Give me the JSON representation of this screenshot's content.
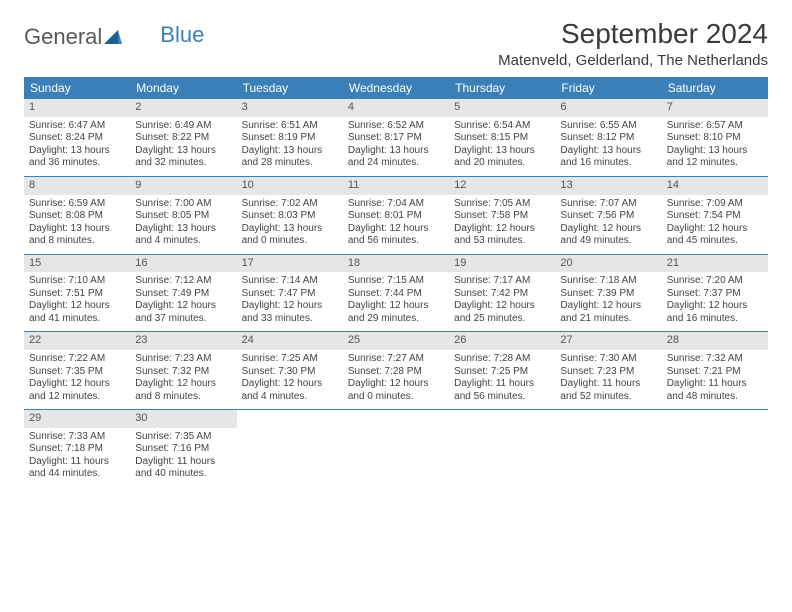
{
  "logo": {
    "text1": "General",
    "text2": "Blue"
  },
  "title": "September 2024",
  "location": "Matenveld, Gelderland, The Netherlands",
  "colors": {
    "header_bg": "#3b7fb8",
    "header_text": "#ffffff",
    "daynum_bg": "#e6e6e6",
    "week_border": "#3b7fb8",
    "body_text": "#444444"
  },
  "weekdays": [
    "Sunday",
    "Monday",
    "Tuesday",
    "Wednesday",
    "Thursday",
    "Friday",
    "Saturday"
  ],
  "weeks": [
    [
      {
        "n": "1",
        "sr": "Sunrise: 6:47 AM",
        "ss": "Sunset: 8:24 PM",
        "dl": "Daylight: 13 hours and 36 minutes."
      },
      {
        "n": "2",
        "sr": "Sunrise: 6:49 AM",
        "ss": "Sunset: 8:22 PM",
        "dl": "Daylight: 13 hours and 32 minutes."
      },
      {
        "n": "3",
        "sr": "Sunrise: 6:51 AM",
        "ss": "Sunset: 8:19 PM",
        "dl": "Daylight: 13 hours and 28 minutes."
      },
      {
        "n": "4",
        "sr": "Sunrise: 6:52 AM",
        "ss": "Sunset: 8:17 PM",
        "dl": "Daylight: 13 hours and 24 minutes."
      },
      {
        "n": "5",
        "sr": "Sunrise: 6:54 AM",
        "ss": "Sunset: 8:15 PM",
        "dl": "Daylight: 13 hours and 20 minutes."
      },
      {
        "n": "6",
        "sr": "Sunrise: 6:55 AM",
        "ss": "Sunset: 8:12 PM",
        "dl": "Daylight: 13 hours and 16 minutes."
      },
      {
        "n": "7",
        "sr": "Sunrise: 6:57 AM",
        "ss": "Sunset: 8:10 PM",
        "dl": "Daylight: 13 hours and 12 minutes."
      }
    ],
    [
      {
        "n": "8",
        "sr": "Sunrise: 6:59 AM",
        "ss": "Sunset: 8:08 PM",
        "dl": "Daylight: 13 hours and 8 minutes."
      },
      {
        "n": "9",
        "sr": "Sunrise: 7:00 AM",
        "ss": "Sunset: 8:05 PM",
        "dl": "Daylight: 13 hours and 4 minutes."
      },
      {
        "n": "10",
        "sr": "Sunrise: 7:02 AM",
        "ss": "Sunset: 8:03 PM",
        "dl": "Daylight: 13 hours and 0 minutes."
      },
      {
        "n": "11",
        "sr": "Sunrise: 7:04 AM",
        "ss": "Sunset: 8:01 PM",
        "dl": "Daylight: 12 hours and 56 minutes."
      },
      {
        "n": "12",
        "sr": "Sunrise: 7:05 AM",
        "ss": "Sunset: 7:58 PM",
        "dl": "Daylight: 12 hours and 53 minutes."
      },
      {
        "n": "13",
        "sr": "Sunrise: 7:07 AM",
        "ss": "Sunset: 7:56 PM",
        "dl": "Daylight: 12 hours and 49 minutes."
      },
      {
        "n": "14",
        "sr": "Sunrise: 7:09 AM",
        "ss": "Sunset: 7:54 PM",
        "dl": "Daylight: 12 hours and 45 minutes."
      }
    ],
    [
      {
        "n": "15",
        "sr": "Sunrise: 7:10 AM",
        "ss": "Sunset: 7:51 PM",
        "dl": "Daylight: 12 hours and 41 minutes."
      },
      {
        "n": "16",
        "sr": "Sunrise: 7:12 AM",
        "ss": "Sunset: 7:49 PM",
        "dl": "Daylight: 12 hours and 37 minutes."
      },
      {
        "n": "17",
        "sr": "Sunrise: 7:14 AM",
        "ss": "Sunset: 7:47 PM",
        "dl": "Daylight: 12 hours and 33 minutes."
      },
      {
        "n": "18",
        "sr": "Sunrise: 7:15 AM",
        "ss": "Sunset: 7:44 PM",
        "dl": "Daylight: 12 hours and 29 minutes."
      },
      {
        "n": "19",
        "sr": "Sunrise: 7:17 AM",
        "ss": "Sunset: 7:42 PM",
        "dl": "Daylight: 12 hours and 25 minutes."
      },
      {
        "n": "20",
        "sr": "Sunrise: 7:18 AM",
        "ss": "Sunset: 7:39 PM",
        "dl": "Daylight: 12 hours and 21 minutes."
      },
      {
        "n": "21",
        "sr": "Sunrise: 7:20 AM",
        "ss": "Sunset: 7:37 PM",
        "dl": "Daylight: 12 hours and 16 minutes."
      }
    ],
    [
      {
        "n": "22",
        "sr": "Sunrise: 7:22 AM",
        "ss": "Sunset: 7:35 PM",
        "dl": "Daylight: 12 hours and 12 minutes."
      },
      {
        "n": "23",
        "sr": "Sunrise: 7:23 AM",
        "ss": "Sunset: 7:32 PM",
        "dl": "Daylight: 12 hours and 8 minutes."
      },
      {
        "n": "24",
        "sr": "Sunrise: 7:25 AM",
        "ss": "Sunset: 7:30 PM",
        "dl": "Daylight: 12 hours and 4 minutes."
      },
      {
        "n": "25",
        "sr": "Sunrise: 7:27 AM",
        "ss": "Sunset: 7:28 PM",
        "dl": "Daylight: 12 hours and 0 minutes."
      },
      {
        "n": "26",
        "sr": "Sunrise: 7:28 AM",
        "ss": "Sunset: 7:25 PM",
        "dl": "Daylight: 11 hours and 56 minutes."
      },
      {
        "n": "27",
        "sr": "Sunrise: 7:30 AM",
        "ss": "Sunset: 7:23 PM",
        "dl": "Daylight: 11 hours and 52 minutes."
      },
      {
        "n": "28",
        "sr": "Sunrise: 7:32 AM",
        "ss": "Sunset: 7:21 PM",
        "dl": "Daylight: 11 hours and 48 minutes."
      }
    ],
    [
      {
        "n": "29",
        "sr": "Sunrise: 7:33 AM",
        "ss": "Sunset: 7:18 PM",
        "dl": "Daylight: 11 hours and 44 minutes."
      },
      {
        "n": "30",
        "sr": "Sunrise: 7:35 AM",
        "ss": "Sunset: 7:16 PM",
        "dl": "Daylight: 11 hours and 40 minutes."
      },
      null,
      null,
      null,
      null,
      null
    ]
  ]
}
